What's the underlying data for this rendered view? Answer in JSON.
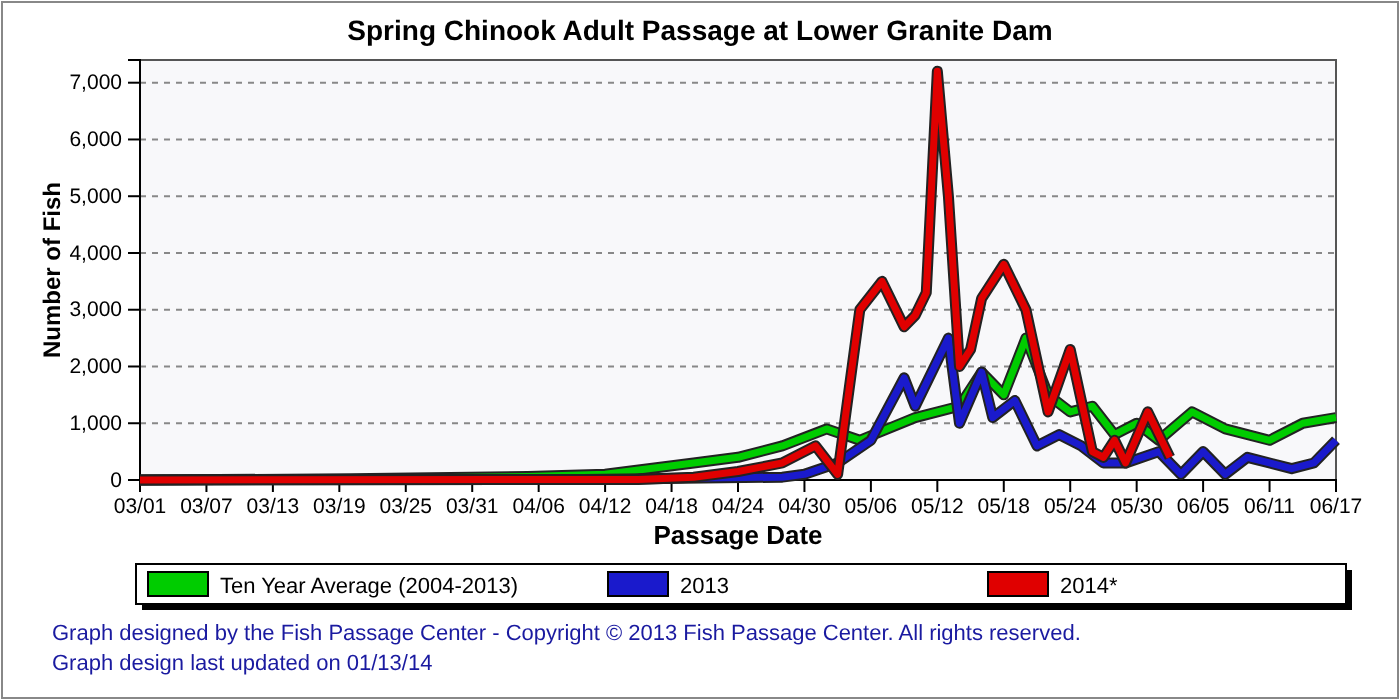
{
  "chart_data": {
    "type": "line",
    "title": "Spring Chinook Adult Passage at Lower Granite Dam",
    "xlabel": "Passage Date",
    "ylabel": "Number of Fish",
    "xlim": [
      "--03-01",
      "--06-17"
    ],
    "ylim": [
      0,
      7400
    ],
    "xticks": [
      {
        "value": "--03-01",
        "label": "03/01"
      },
      {
        "value": "--03-07",
        "label": "03/07"
      },
      {
        "value": "--03-13",
        "label": "03/13"
      },
      {
        "value": "--03-19",
        "label": "03/19"
      },
      {
        "value": "--03-25",
        "label": "03/25"
      },
      {
        "value": "--03-31",
        "label": "03/31"
      },
      {
        "value": "--04-06",
        "label": "04/06"
      },
      {
        "value": "--04-12",
        "label": "04/12"
      },
      {
        "value": "--04-18",
        "label": "04/18"
      },
      {
        "value": "--04-24",
        "label": "04/24"
      },
      {
        "value": "--04-30",
        "label": "04/30"
      },
      {
        "value": "--05-06",
        "label": "05/06"
      },
      {
        "value": "--05-12",
        "label": "05/12"
      },
      {
        "value": "--05-18",
        "label": "05/18"
      },
      {
        "value": "--05-24",
        "label": "05/24"
      },
      {
        "value": "--05-30",
        "label": "05/30"
      },
      {
        "value": "--06-05",
        "label": "06/05"
      },
      {
        "value": "--06-11",
        "label": "06/11"
      },
      {
        "value": "--06-17",
        "label": "06/17"
      }
    ],
    "yticks": [
      {
        "value": 0,
        "label": "0"
      },
      {
        "value": 1000,
        "label": "1,000"
      },
      {
        "value": 2000,
        "label": "2,000"
      },
      {
        "value": 3000,
        "label": "3,000"
      },
      {
        "value": 4000,
        "label": "4,000"
      },
      {
        "value": 5000,
        "label": "5,000"
      },
      {
        "value": 6000,
        "label": "6,000"
      },
      {
        "value": 7000,
        "label": "7,000"
      }
    ],
    "grid": "y",
    "legend": "bottom",
    "marker": "none",
    "series": [
      {
        "name": "Ten Year Average (2004-2013)",
        "color": "#00cc00",
        "x": [
          "--03-01",
          "--03-20",
          "--04-05",
          "--04-12",
          "--04-20",
          "--04-24",
          "--04-28",
          "--05-02",
          "--05-05",
          "--05-10",
          "--05-14",
          "--05-16",
          "--05-18",
          "--05-20",
          "--05-22",
          "--05-24",
          "--05-26",
          "--05-28",
          "--05-30",
          "--06-01",
          "--06-04",
          "--06-07",
          "--06-11",
          "--06-14",
          "--06-17"
        ],
        "values": [
          0,
          20,
          60,
          100,
          300,
          400,
          600,
          900,
          700,
          1100,
          1300,
          1900,
          1500,
          2500,
          1500,
          1200,
          1300,
          800,
          1000,
          700,
          1200,
          900,
          700,
          1000,
          1100
        ]
      },
      {
        "name": "2013",
        "color": "#1a1acc",
        "x": [
          "--03-01",
          "--04-10",
          "--04-28",
          "--04-30",
          "--05-03",
          "--05-06",
          "--05-09",
          "--05-10",
          "--05-13",
          "--05-14",
          "--05-16",
          "--05-17",
          "--05-19",
          "--05-21",
          "--05-23",
          "--05-25",
          "--05-27",
          "--05-29",
          "--06-01",
          "--06-03",
          "--06-05",
          "--06-07",
          "--06-09",
          "--06-11",
          "--06-13",
          "--06-15",
          "--06-17"
        ],
        "values": [
          0,
          10,
          50,
          100,
          300,
          700,
          1800,
          1300,
          2500,
          1000,
          1900,
          1100,
          1400,
          600,
          800,
          600,
          300,
          300,
          500,
          100,
          500,
          100,
          400,
          300,
          200,
          300,
          700
        ]
      },
      {
        "name": "2014*",
        "color": "#e00000",
        "x": [
          "--03-01",
          "--04-15",
          "--04-20",
          "--04-24",
          "--04-28",
          "--05-01",
          "--05-03",
          "--05-05",
          "--05-07",
          "--05-09",
          "--05-10",
          "--05-11",
          "--05-12",
          "--05-13",
          "--05-14",
          "--05-15",
          "--05-16",
          "--05-18",
          "--05-20",
          "--05-22",
          "--05-24",
          "--05-26",
          "--05-27",
          "--05-28",
          "--05-29",
          "--05-31",
          "--06-02"
        ],
        "values": [
          0,
          10,
          50,
          150,
          300,
          600,
          100,
          3000,
          3500,
          2700,
          2900,
          3300,
          7200,
          5000,
          2000,
          2300,
          3200,
          3800,
          3000,
          1200,
          2300,
          500,
          400,
          700,
          300,
          1200,
          400
        ]
      }
    ],
    "annotations": [
      "Graph designed by the Fish Passage Center - Copyright © 2013 Fish Passage Center. All rights reserved.",
      "Graph design last updated on 01/13/14"
    ]
  }
}
